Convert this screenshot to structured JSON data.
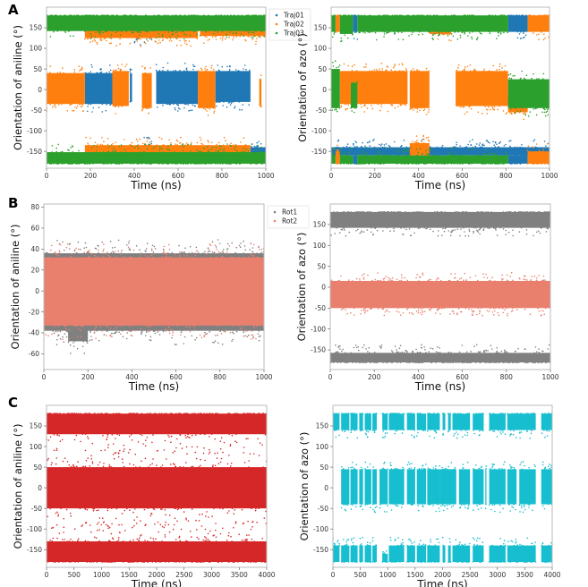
{
  "panel_labels": [
    "A",
    "B",
    "C"
  ],
  "chart_data": [
    {
      "type": "scatter",
      "panel": "A",
      "xlabel": "Time (ns)",
      "ylabel": "Orientation of aniline (°)",
      "xlim": [
        0,
        1000
      ],
      "ylim": [
        -191,
        200
      ],
      "xticks": [
        0,
        200,
        400,
        600,
        800,
        1000
      ],
      "yticks": [
        -150,
        -100,
        -50,
        0,
        50,
        100,
        150
      ],
      "grid": false,
      "legend": {
        "position": "upper-right-outside",
        "entries": [
          "Traj01",
          "Traj02",
          "Traj03"
        ]
      },
      "segments_format": [
        "t_start",
        "t_end",
        "angle_low",
        "angle_high"
      ],
      "series": [
        {
          "name": "Traj01",
          "color": "#1f77b4",
          "segments": [
            [
              175,
              300,
              -35,
              40
            ],
            [
              380,
              390,
              -30,
              40
            ],
            [
              500,
              690,
              -35,
              45
            ],
            [
              770,
              930,
              -30,
              45
            ],
            [
              400,
              480,
              125,
              150
            ],
            [
              930,
              1000,
              -160,
              -140
            ],
            [
              440,
              480,
              -160,
              -135
            ]
          ]
        },
        {
          "name": "Traj02",
          "color": "#ff7f0e",
          "segments": [
            [
              0,
              175,
              -35,
              40
            ],
            [
              300,
              375,
              -40,
              45
            ],
            [
              435,
              480,
              -45,
              40
            ],
            [
              690,
              770,
              -45,
              45
            ],
            [
              970,
              980,
              -40,
              25
            ],
            [
              175,
              690,
              125,
              150
            ],
            [
              700,
              1000,
              130,
              150
            ],
            [
              175,
              930,
              -160,
              -135
            ]
          ]
        },
        {
          "name": "Traj03",
          "color": "#2ca02c",
          "segments": [
            [
              0,
              1000,
              142,
              180
            ],
            [
              0,
              1000,
              -180,
              -152
            ]
          ]
        }
      ]
    },
    {
      "type": "scatter",
      "panel": "A",
      "xlabel": "Time (ns)",
      "ylabel": "Orientation of azo (°)",
      "xlim": [
        0,
        1000
      ],
      "ylim": [
        -191,
        200
      ],
      "xticks": [
        0,
        200,
        400,
        600,
        800,
        1000
      ],
      "yticks": [
        -150,
        -100,
        -50,
        0,
        50,
        100,
        150
      ],
      "grid": false,
      "segments_format": [
        "t_start",
        "t_end",
        "angle_low",
        "angle_high"
      ],
      "series": [
        {
          "name": "Traj01",
          "color": "#1f77b4",
          "segments": [
            [
              100,
              120,
              140,
              180
            ],
            [
              810,
              900,
              140,
              180
            ],
            [
              0,
              1000,
              -160,
              -140
            ],
            [
              100,
              120,
              -180,
              -160
            ],
            [
              810,
              900,
              -180,
              -160
            ]
          ]
        },
        {
          "name": "Traj02",
          "color": "#ff7f0e",
          "segments": [
            [
              20,
              40,
              140,
              180
            ],
            [
              900,
              1000,
              140,
              180
            ],
            [
              450,
              550,
              135,
              150
            ],
            [
              40,
              350,
              -35,
              45
            ],
            [
              360,
              450,
              -45,
              45
            ],
            [
              570,
              810,
              -40,
              45
            ],
            [
              810,
              900,
              -55,
              -20
            ],
            [
              20,
              40,
              -180,
              -150
            ],
            [
              900,
              1000,
              -180,
              -150
            ],
            [
              360,
              450,
              -160,
              -130
            ]
          ]
        },
        {
          "name": "Traj03",
          "color": "#2ca02c",
          "segments": [
            [
              0,
              20,
              140,
              180
            ],
            [
              40,
              100,
              135,
              180
            ],
            [
              120,
              810,
              140,
              180
            ],
            [
              0,
              40,
              -45,
              50
            ],
            [
              90,
              120,
              -45,
              15
            ],
            [
              810,
              1000,
              -45,
              25
            ],
            [
              0,
              20,
              -180,
              -160
            ],
            [
              40,
              100,
              -180,
              -160
            ],
            [
              120,
              810,
              -180,
              -160
            ]
          ]
        }
      ]
    },
    {
      "type": "scatter",
      "panel": "B",
      "xlabel": "Time (ns)",
      "ylabel": "Orientation of aniline (°)",
      "xlim": [
        0,
        1000
      ],
      "ylim": [
        -75,
        83
      ],
      "xticks": [
        0,
        200,
        400,
        600,
        800,
        1000
      ],
      "yticks": [
        -60,
        -40,
        -20,
        0,
        20,
        40,
        60,
        80
      ],
      "grid": false,
      "legend": {
        "position": "upper-right-outside",
        "entries": [
          "Rot1",
          "Rot2"
        ]
      },
      "segments_format": [
        "t_start",
        "t_end",
        "angle_low",
        "angle_high"
      ],
      "series": [
        {
          "name": "Rot1",
          "color": "#808080",
          "segments": [
            [
              0,
              1000,
              -38,
              36
            ],
            [
              110,
              200,
              -48,
              -25
            ]
          ]
        },
        {
          "name": "Rot2",
          "color": "#e9806e",
          "segments": [
            [
              0,
              1000,
              -33,
              32
            ]
          ]
        }
      ]
    },
    {
      "type": "scatter",
      "panel": "B",
      "xlabel": "Time (ns)",
      "ylabel": "Orientation of azo (°)",
      "xlim": [
        0,
        1000
      ],
      "ylim": [
        -197,
        199
      ],
      "xticks": [
        0,
        200,
        400,
        600,
        800,
        1000
      ],
      "yticks": [
        -150,
        -100,
        -50,
        0,
        50,
        100,
        150
      ],
      "grid": false,
      "segments_format": [
        "t_start",
        "t_end",
        "angle_low",
        "angle_high"
      ],
      "series": [
        {
          "name": "Rot1",
          "color": "#808080",
          "segments": [
            [
              0,
              1000,
              142,
              180
            ],
            [
              0,
              1000,
              -180,
              -157
            ]
          ]
        },
        {
          "name": "Rot2",
          "color": "#e9806e",
          "segments": [
            [
              0,
              1000,
              -50,
              15
            ]
          ]
        }
      ]
    },
    {
      "type": "scatter",
      "panel": "C",
      "xlabel": "Time (ns)",
      "ylabel": "Orientation of aniline (°)",
      "xlim": [
        0,
        4000
      ],
      "ylim": [
        -193,
        200
      ],
      "xticks": [
        0,
        500,
        1000,
        1500,
        2000,
        2500,
        3000,
        3500,
        4000
      ],
      "yticks": [
        -150,
        -100,
        -50,
        0,
        50,
        100,
        150
      ],
      "grid": false,
      "segments_format": [
        "t_start",
        "t_end",
        "angle_low",
        "angle_high"
      ],
      "series": [
        {
          "color": "#d62728",
          "segments": [
            [
              0,
              4000,
              130,
              180
            ],
            [
              0,
              4000,
              -50,
              50
            ],
            [
              0,
              4000,
              -180,
              -130
            ]
          ]
        }
      ]
    },
    {
      "type": "scatter",
      "panel": "C",
      "xlabel": "Time (ns)",
      "ylabel": "Orientation of azo (°)",
      "xlim": [
        0,
        4000
      ],
      "ylim": [
        -193,
        200
      ],
      "xticks": [
        0,
        500,
        1000,
        1500,
        2000,
        2500,
        3000,
        3500,
        4000
      ],
      "yticks": [
        -150,
        -100,
        -50,
        0,
        50,
        100,
        150
      ],
      "grid": false,
      "segments_format": [
        "t_start",
        "t_end",
        "angle_low",
        "angle_high"
      ],
      "series": [
        {
          "color": "#17becf",
          "segments": [
            [
              0,
              120,
              140,
              180
            ],
            [
              150,
              300,
              140,
              180
            ],
            [
              320,
              450,
              140,
              180
            ],
            [
              480,
              550,
              140,
              180
            ],
            [
              580,
              700,
              140,
              180
            ],
            [
              720,
              800,
              140,
              180
            ],
            [
              900,
              1000,
              140,
              180
            ],
            [
              1020,
              1300,
              140,
              180
            ],
            [
              1350,
              1500,
              140,
              180
            ],
            [
              1530,
              1700,
              140,
              180
            ],
            [
              1720,
              1950,
              140,
              180
            ],
            [
              2000,
              2050,
              140,
              180
            ],
            [
              2100,
              2150,
              140,
              180
            ],
            [
              2180,
              2500,
              140,
              180
            ],
            [
              2550,
              2750,
              140,
              180
            ],
            [
              2850,
              3150,
              140,
              180
            ],
            [
              3180,
              3700,
              140,
              180
            ],
            [
              3800,
              4000,
              140,
              180
            ],
            [
              150,
              300,
              -40,
              45
            ],
            [
              320,
              450,
              -40,
              45
            ],
            [
              480,
              550,
              -40,
              45
            ],
            [
              580,
              700,
              -40,
              45
            ],
            [
              720,
              800,
              -40,
              45
            ],
            [
              850,
              1000,
              -40,
              45
            ],
            [
              1020,
              1300,
              -40,
              45
            ],
            [
              1350,
              1500,
              -40,
              45
            ],
            [
              1530,
              1700,
              -40,
              45
            ],
            [
              1720,
              1950,
              -40,
              45
            ],
            [
              1950,
              2250,
              -40,
              45
            ],
            [
              2300,
              2500,
              -40,
              45
            ],
            [
              2550,
              2750,
              -40,
              45
            ],
            [
              2780,
              2800,
              -40,
              45
            ],
            [
              2850,
              3150,
              -40,
              45
            ],
            [
              3180,
              3350,
              -40,
              45
            ],
            [
              3400,
              3700,
              -40,
              45
            ],
            [
              3800,
              4000,
              -40,
              45
            ],
            [
              0,
              120,
              -180,
              -140
            ],
            [
              150,
              300,
              -180,
              -140
            ],
            [
              320,
              450,
              -180,
              -140
            ],
            [
              480,
              550,
              -180,
              -140
            ],
            [
              580,
              700,
              -180,
              -140
            ],
            [
              720,
              800,
              -180,
              -140
            ],
            [
              900,
              1000,
              -180,
              -160
            ],
            [
              1020,
              1300,
              -180,
              -140
            ],
            [
              1350,
              1500,
              -180,
              -140
            ],
            [
              1530,
              1700,
              -180,
              -140
            ],
            [
              1720,
              1950,
              -180,
              -140
            ],
            [
              2000,
              2050,
              -180,
              -140
            ],
            [
              2100,
              2150,
              -180,
              -140
            ],
            [
              2180,
              2500,
              -180,
              -140
            ],
            [
              2550,
              2750,
              -180,
              -140
            ],
            [
              2850,
              3150,
              -180,
              -140
            ],
            [
              3180,
              3700,
              -180,
              -140
            ],
            [
              3800,
              4000,
              -180,
              -140
            ]
          ]
        }
      ]
    }
  ]
}
